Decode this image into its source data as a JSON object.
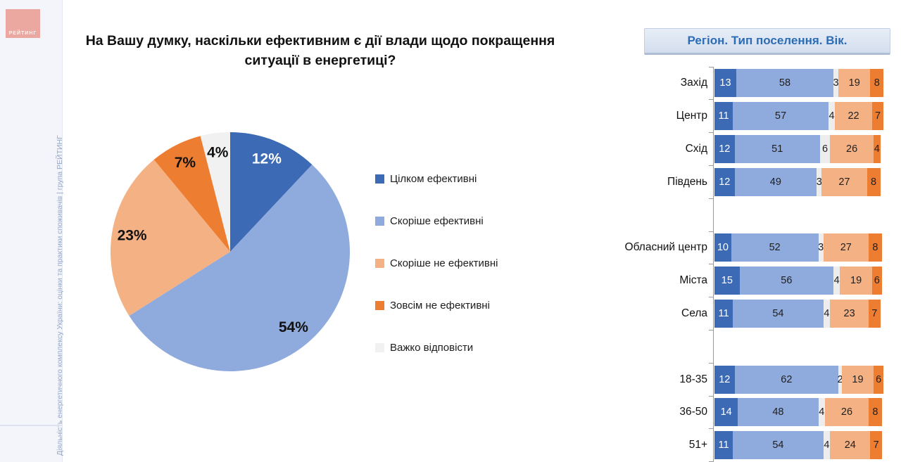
{
  "sidebar": {
    "logo_text": "РЕЙТИНГ",
    "vertical_text": "Діяльність енергетичного комплексу України: оцінки та практики споживачів | група РЕЙТИНГ"
  },
  "main": {
    "title": "На Вашу думку, наскільки ефективним є дії влади щодо покращення\nситуації в енергетиці?"
  },
  "panel": {
    "header": "Регіон. Тип поселення. Вік."
  },
  "colors": {
    "fully_effective": "#3d6ab5",
    "rather_effective": "#8faadc",
    "rather_not_effective": "#f4b183",
    "not_effective": "#ed7d31",
    "hard_to_say": "#f1f1f1",
    "panel_header_text": "#2c6cb4",
    "panel_header_bg": "#dce6f3",
    "sidebar_bg": "#f3f5fa",
    "logo_bg": "#eba8a1"
  },
  "legend": {
    "items": [
      {
        "label": "Цілком ефективні",
        "color": "#3d6ab5"
      },
      {
        "label": "Скоріше ефективні",
        "color": "#8faadc"
      },
      {
        "label": "Скоріше не ефективні",
        "color": "#f4b183"
      },
      {
        "label": "Зовсім не ефективні",
        "color": "#ed7d31"
      },
      {
        "label": "Важко відповісти",
        "color": "#f1f1f1"
      }
    ]
  },
  "chart_data": [
    {
      "type": "pie",
      "title": "На Вашу думку, наскільки ефективним є дії влади щодо покращення ситуації в енергетиці?",
      "labels": [
        "Цілком ефективні",
        "Скоріше ефективні",
        "Скоріше не ефективні",
        "Зовсім не ефективні",
        "Важко відповісти"
      ],
      "values": [
        12,
        54,
        23,
        7,
        4
      ],
      "label_texts": [
        "12%",
        "54%",
        "23%",
        "7%",
        "4%"
      ],
      "colors": [
        "#3d6ab5",
        "#8faadc",
        "#f4b183",
        "#ed7d31",
        "#f1f1f1"
      ],
      "label_colors": [
        "#ffffff",
        "#111111",
        "#111111",
        "#111111",
        "#111111"
      ],
      "start_angle_deg": 0,
      "direction": "clockwise",
      "label_radius_fraction": 0.83,
      "legend_position": "right"
    },
    {
      "type": "bar",
      "subtype": "horizontal-stacked",
      "title": "Регіон. Тип поселення. Вік.",
      "series": [
        "Цілком ефективні",
        "Скоріше ефективні",
        "Важко відповісти",
        "Скоріше не ефективні",
        "Зовсім не ефективні"
      ],
      "series_colors": [
        "#3d6ab5",
        "#8faadc",
        "#ededed",
        "#f4b183",
        "#ed7d31"
      ],
      "value_text_colors": [
        "#ffffff",
        "#1f1f1f",
        "#1f1f1f",
        "#1f1f1f",
        "#1f1f1f"
      ],
      "xmax": 100,
      "grid": false,
      "groups": [
        {
          "name": "Регіон",
          "rows": [
            {
              "label": "Захід",
              "values": [
                13,
                58,
                3,
                19,
                8
              ]
            },
            {
              "label": "Центр",
              "values": [
                11,
                57,
                4,
                22,
                7
              ]
            },
            {
              "label": "Схід",
              "values": [
                12,
                51,
                6,
                26,
                4
              ]
            },
            {
              "label": "Південь",
              "values": [
                12,
                49,
                3,
                27,
                8
              ]
            }
          ]
        },
        {
          "name": "Тип поселення",
          "rows": [
            {
              "label": "Обласний центр",
              "values": [
                10,
                52,
                3,
                27,
                8
              ]
            },
            {
              "label": "Міста",
              "values": [
                15,
                56,
                4,
                19,
                6
              ]
            },
            {
              "label": "Села",
              "values": [
                11,
                54,
                4,
                23,
                7
              ]
            }
          ]
        },
        {
          "name": "Вік",
          "rows": [
            {
              "label": "18-35",
              "values": [
                12,
                62,
                2,
                19,
                6
              ]
            },
            {
              "label": "36-50",
              "values": [
                14,
                48,
                4,
                26,
                8
              ]
            },
            {
              "label": "51+",
              "values": [
                11,
                54,
                4,
                24,
                7
              ]
            }
          ]
        }
      ]
    }
  ]
}
